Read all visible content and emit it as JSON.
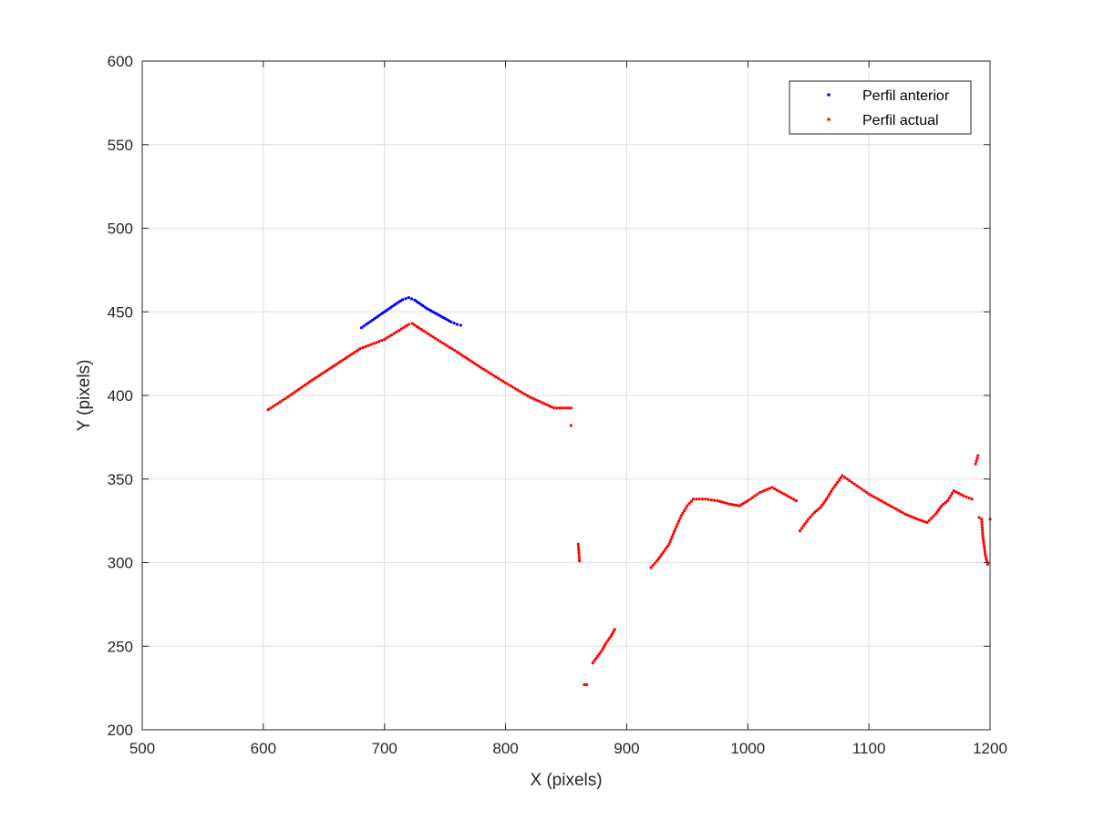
{
  "chart_data": {
    "type": "scatter",
    "title": "",
    "xlabel": "X (pixels)",
    "ylabel": "Y (pixels)",
    "xlim": [
      500,
      1200
    ],
    "ylim": [
      200,
      600
    ],
    "xticks": [
      500,
      600,
      700,
      800,
      900,
      1000,
      1100,
      1200
    ],
    "yticks": [
      200,
      250,
      300,
      350,
      400,
      450,
      500,
      550,
      600
    ],
    "grid": true,
    "legend_position": "top-right",
    "series": [
      {
        "name": "Perfil anterior",
        "color": "#0000ff",
        "points": [
          [
            681,
            440.5
          ],
          [
            685,
            442.5
          ],
          [
            690,
            445
          ],
          [
            695,
            447.5
          ],
          [
            700,
            450
          ],
          [
            705,
            452.5
          ],
          [
            710,
            455
          ],
          [
            715,
            457.3
          ],
          [
            720,
            458.5
          ],
          [
            725,
            457
          ],
          [
            730,
            454.5
          ],
          [
            735,
            452
          ],
          [
            740,
            450
          ],
          [
            745,
            448
          ],
          [
            750,
            446
          ],
          [
            755,
            444
          ],
          [
            760,
            442.5
          ],
          [
            763,
            442
          ]
        ]
      },
      {
        "name": "Perfil actual",
        "color": "#ff0000",
        "points": [
          [
            604,
            391.5
          ],
          [
            620,
            399
          ],
          [
            640,
            409
          ],
          [
            660,
            418.5
          ],
          [
            680,
            428
          ],
          [
            700,
            433.5
          ],
          [
            710,
            438
          ],
          [
            720,
            442.5
          ],
          [
            723,
            443
          ],
          [
            740,
            435
          ],
          [
            760,
            426
          ],
          [
            780,
            416.5
          ],
          [
            800,
            407.5
          ],
          [
            820,
            399
          ],
          [
            840,
            392.5
          ],
          [
            854,
            392.5
          ],
          [
            854,
            382
          ],
          [
            860,
            311
          ],
          [
            861,
            301
          ],
          [
            865,
            227
          ],
          [
            867,
            227
          ],
          [
            872,
            240
          ],
          [
            876,
            244
          ],
          [
            880,
            248
          ],
          [
            883,
            252
          ],
          [
            887,
            256
          ],
          [
            890,
            260
          ],
          [
            920,
            297
          ],
          [
            925,
            301
          ],
          [
            930,
            306
          ],
          [
            935,
            311
          ],
          [
            940,
            320
          ],
          [
            945,
            328
          ],
          [
            950,
            334
          ],
          [
            955,
            338
          ],
          [
            965,
            338
          ],
          [
            975,
            337
          ],
          [
            985,
            335
          ],
          [
            993,
            334
          ],
          [
            1000,
            337
          ],
          [
            1010,
            342
          ],
          [
            1020,
            345
          ],
          [
            1030,
            341
          ],
          [
            1040,
            337
          ],
          [
            1043,
            319
          ],
          [
            1046,
            322
          ],
          [
            1050,
            326
          ],
          [
            1055,
            330
          ],
          [
            1060,
            333
          ],
          [
            1065,
            338
          ],
          [
            1070,
            344
          ],
          [
            1078,
            352
          ],
          [
            1090,
            346
          ],
          [
            1100,
            341
          ],
          [
            1110,
            337
          ],
          [
            1120,
            333
          ],
          [
            1130,
            329
          ],
          [
            1140,
            326
          ],
          [
            1148,
            324
          ],
          [
            1155,
            329
          ],
          [
            1160,
            334
          ],
          [
            1165,
            337
          ],
          [
            1170,
            343
          ],
          [
            1178,
            340
          ],
          [
            1185,
            338
          ],
          [
            1188,
            359
          ],
          [
            1190,
            364
          ],
          [
            1191,
            327
          ],
          [
            1193,
            326
          ],
          [
            1194,
            316
          ],
          [
            1196,
            305
          ],
          [
            1198,
            299
          ],
          [
            1200,
            326
          ]
        ]
      }
    ]
  }
}
